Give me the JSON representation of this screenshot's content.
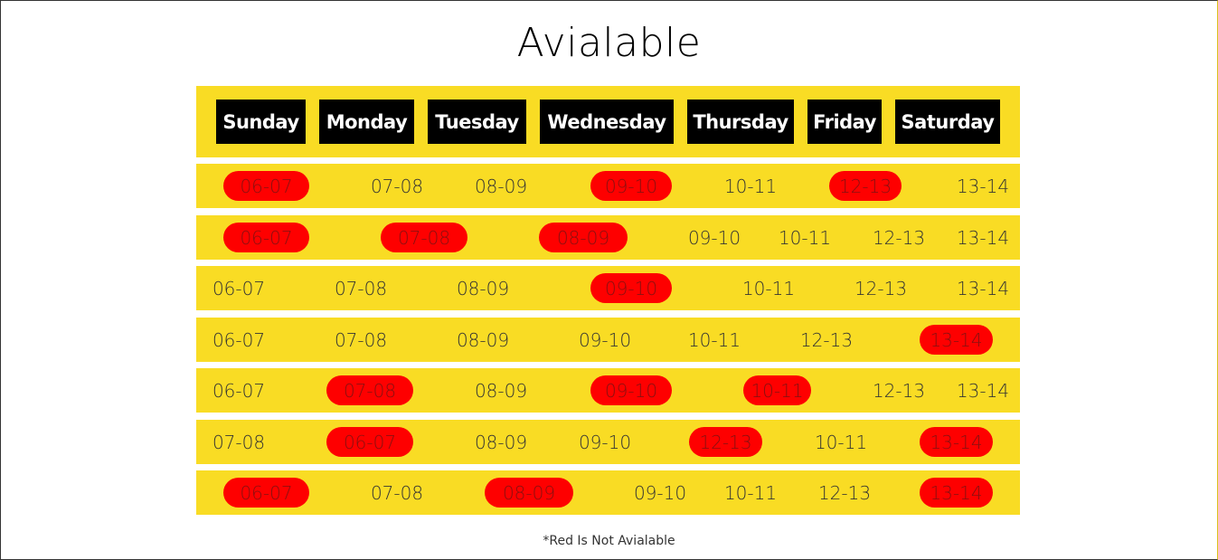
{
  "title": "Avialable",
  "days": [
    "Sunday",
    "Monday",
    "Tuesday",
    "Wednesday",
    "Thursday",
    "Friday",
    "Saturday"
  ],
  "rows": [
    [
      {
        "label": "06-07",
        "available": false
      },
      {
        "label": "07-08",
        "available": true
      },
      {
        "label": "08-09",
        "available": true
      },
      {
        "label": "09-10",
        "available": false
      },
      {
        "label": "10-11",
        "available": true
      },
      {
        "label": "12-13",
        "available": false
      },
      {
        "label": "13-14",
        "available": true
      }
    ],
    [
      {
        "label": "06-07",
        "available": false
      },
      {
        "label": "07-08",
        "available": false
      },
      {
        "label": "08-09",
        "available": false
      },
      {
        "label": "09-10",
        "available": true
      },
      {
        "label": "10-11",
        "available": true
      },
      {
        "label": "12-13",
        "available": true
      },
      {
        "label": "13-14",
        "available": true
      }
    ],
    [
      {
        "label": "06-07",
        "available": true
      },
      {
        "label": "07-08",
        "available": true
      },
      {
        "label": "08-09",
        "available": true
      },
      {
        "label": "09-10",
        "available": false
      },
      {
        "label": "10-11",
        "available": true
      },
      {
        "label": "12-13",
        "available": true
      },
      {
        "label": "13-14",
        "available": true
      }
    ],
    [
      {
        "label": "06-07",
        "available": true
      },
      {
        "label": "07-08",
        "available": true
      },
      {
        "label": "08-09",
        "available": true
      },
      {
        "label": "09-10",
        "available": true
      },
      {
        "label": "10-11",
        "available": true
      },
      {
        "label": "12-13",
        "available": true
      },
      {
        "label": "13-14",
        "available": false
      }
    ],
    [
      {
        "label": "06-07",
        "available": true
      },
      {
        "label": "07-08",
        "available": false
      },
      {
        "label": "08-09",
        "available": true
      },
      {
        "label": "09-10",
        "available": false
      },
      {
        "label": "10-11",
        "available": false
      },
      {
        "label": "12-13",
        "available": true
      },
      {
        "label": "13-14",
        "available": true
      }
    ],
    [
      {
        "label": "07-08",
        "available": true
      },
      {
        "label": "06-07",
        "available": false
      },
      {
        "label": "08-09",
        "available": true
      },
      {
        "label": "09-10",
        "available": true
      },
      {
        "label": "12-13",
        "available": false
      },
      {
        "label": "10-11",
        "available": true
      },
      {
        "label": "13-14",
        "available": false
      }
    ],
    [
      {
        "label": "06-07",
        "available": false
      },
      {
        "label": "07-08",
        "available": true
      },
      {
        "label": "08-09",
        "available": false
      },
      {
        "label": "09-10",
        "available": true
      },
      {
        "label": "10-11",
        "available": true
      },
      {
        "label": "12-13",
        "available": true
      },
      {
        "label": "13-14",
        "available": false
      }
    ]
  ],
  "footnote": "*Red Is Not Avialable",
  "colors": {
    "accent_yellow": "#f9dc24",
    "unavailable_red": "#fe0000",
    "header_black": "#000000"
  }
}
